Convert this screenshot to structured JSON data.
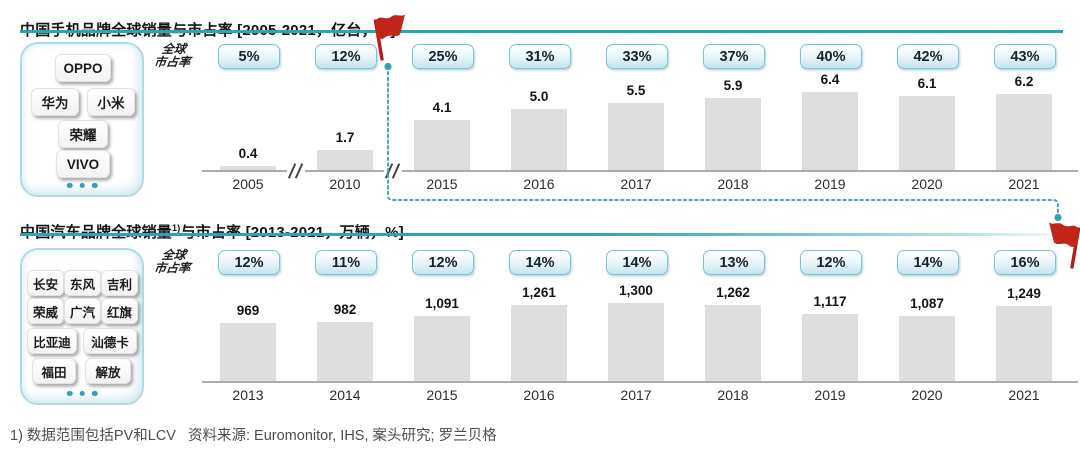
{
  "colors": {
    "accent_teal": "#2EA3B4",
    "dotted_line": "#3FA9C5",
    "flag_red": "#C4251B",
    "bar_fill": "#DEDEDE",
    "badge_border": "#7FC0D2"
  },
  "footer": {
    "footnote": "1) 数据范围包括PV和LCV",
    "source": "资料来源: Euromonitor, IHS, 案头研究; 罗兰贝格"
  },
  "chart_data": [
    {
      "id": "phones",
      "type": "bar",
      "title": "中国手机品牌全球销量与市占率 [2005-2021，亿台，%]",
      "unit": "亿台",
      "share_row_label_lines": [
        "全球",
        "市占率"
      ],
      "categories": [
        "2005",
        "2010",
        "2015",
        "2016",
        "2017",
        "2018",
        "2019",
        "2020",
        "2021"
      ],
      "values": [
        0.4,
        1.7,
        4.1,
        5.0,
        5.5,
        5.9,
        6.4,
        6.1,
        6.2
      ],
      "value_labels": [
        "0.4",
        "1.7",
        "4.1",
        "5.0",
        "5.5",
        "5.9",
        "6.4",
        "6.1",
        "6.2"
      ],
      "market_share": [
        "5%",
        "12%",
        "25%",
        "31%",
        "33%",
        "37%",
        "40%",
        "42%",
        "43%"
      ],
      "ylim": [
        0,
        7
      ],
      "axis_breaks_between": [
        [
          "2005",
          "2010"
        ],
        [
          "2010",
          "2015"
        ]
      ],
      "brand_chips": [
        "OPPO",
        "华为",
        "小米",
        "荣耀",
        "VIVO"
      ],
      "legend_position": "none",
      "grid": false
    },
    {
      "id": "cars",
      "type": "bar",
      "title_prefix": "中国汽车品牌全球销量",
      "title_sup": "1)",
      "title_suffix": "与市占率 [2013-2021，万辆，%]",
      "unit": "万辆",
      "share_row_label_lines": [
        "全球",
        "市占率"
      ],
      "categories": [
        "2013",
        "2014",
        "2015",
        "2016",
        "2017",
        "2018",
        "2019",
        "2020",
        "2021"
      ],
      "values": [
        969,
        982,
        1091,
        1261,
        1300,
        1262,
        1117,
        1087,
        1249
      ],
      "value_labels": [
        "969",
        "982",
        "1,091",
        "1,261",
        "1,300",
        "1,262",
        "1,117",
        "1,087",
        "1,249"
      ],
      "market_share": [
        "12%",
        "11%",
        "12%",
        "14%",
        "14%",
        "13%",
        "12%",
        "14%",
        "16%"
      ],
      "ylim": [
        0,
        1400
      ],
      "brand_chips_rows": [
        [
          "长安",
          "东风",
          "吉利"
        ],
        [
          "荣威",
          "广汽",
          "红旗"
        ],
        [
          "比亚迪",
          "汕德卡"
        ],
        [
          "福田",
          "解放"
        ]
      ],
      "legend_position": "none",
      "grid": false
    }
  ]
}
